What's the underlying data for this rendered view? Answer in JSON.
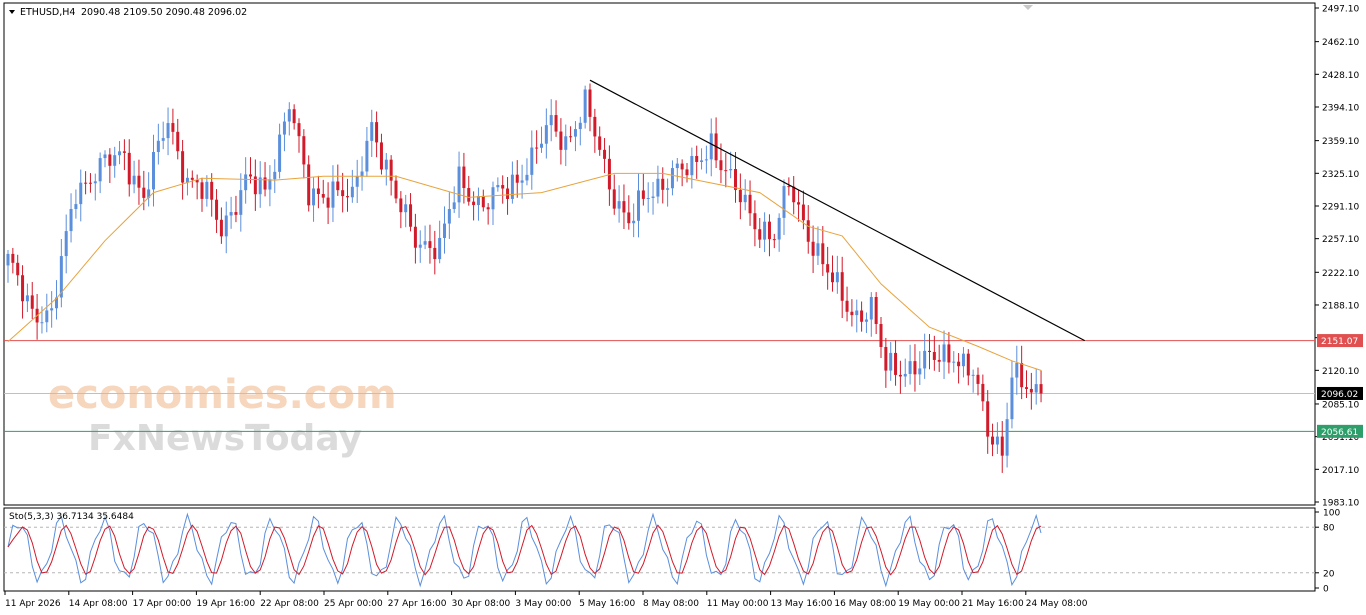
{
  "header": {
    "symbol": "ETHUSD,H4",
    "ohlc": "2090.48 2109.50 2090.48 2096.02"
  },
  "watermark": {
    "line1": "economies.com",
    "line2": "FxNewsToday"
  },
  "price_axis": {
    "ticks": [
      "2497.10",
      "2462.10",
      "2428.10",
      "2394.10",
      "2359.10",
      "2325.10",
      "2291.10",
      "2257.10",
      "2222.10",
      "2188.10",
      "2154.10",
      "2120.10",
      "2085.10",
      "2051.10",
      "2017.10",
      "1983.10"
    ]
  },
  "levels": {
    "resistance": {
      "value": 2151.07,
      "label": "2151.07",
      "color": "#e05050"
    },
    "current": {
      "value": 2096.02,
      "label": "2096.02",
      "color": "#000000"
    },
    "support": {
      "value": 2056.61,
      "label": "2056.61",
      "color": "#2e9e6a"
    }
  },
  "stochastic": {
    "label": "Sto(5,3,3) 36.7134 35.6484",
    "axis_ticks": [
      "100",
      "80",
      "20",
      "0"
    ]
  },
  "time_axis": {
    "labels": [
      "11 Apr 2026",
      "14 Apr 08:00",
      "17 Apr 00:00",
      "19 Apr 16:00",
      "22 Apr 08:00",
      "25 Apr 00:00",
      "27 Apr 16:00",
      "30 Apr 08:00",
      "3 May 00:00",
      "5 May 16:00",
      "8 May 08:00",
      "11 May 00:00",
      "13 May 16:00",
      "16 May 08:00",
      "19 May 00:00",
      "21 May 16:00",
      "24 May 08:00"
    ]
  },
  "chart_data": {
    "type": "candlestick",
    "symbol": "ETHUSD",
    "timeframe": "H4",
    "ylim": [
      1983.1,
      2497.1
    ],
    "bull_color": "#5b8fdc",
    "bear_color": "#d11a2a",
    "ma_color": "#e8a33c",
    "anchors": [
      {
        "i": 0,
        "p": 2230
      },
      {
        "i": 5,
        "p": 2185
      },
      {
        "i": 9,
        "p": 2175
      },
      {
        "i": 14,
        "p": 2310
      },
      {
        "i": 19,
        "p": 2330
      },
      {
        "i": 24,
        "p": 2345
      },
      {
        "i": 28,
        "p": 2300
      },
      {
        "i": 33,
        "p": 2380
      },
      {
        "i": 37,
        "p": 2320
      },
      {
        "i": 41,
        "p": 2300
      },
      {
        "i": 44,
        "p": 2270
      },
      {
        "i": 49,
        "p": 2315
      },
      {
        "i": 53,
        "p": 2305
      },
      {
        "i": 58,
        "p": 2400
      },
      {
        "i": 62,
        "p": 2300
      },
      {
        "i": 67,
        "p": 2310
      },
      {
        "i": 71,
        "p": 2295
      },
      {
        "i": 75,
        "p": 2380
      },
      {
        "i": 80,
        "p": 2295
      },
      {
        "i": 84,
        "p": 2260
      },
      {
        "i": 89,
        "p": 2245
      },
      {
        "i": 93,
        "p": 2320
      },
      {
        "i": 98,
        "p": 2290
      },
      {
        "i": 103,
        "p": 2310
      },
      {
        "i": 108,
        "p": 2340
      },
      {
        "i": 112,
        "p": 2375
      },
      {
        "i": 115,
        "p": 2360
      },
      {
        "i": 119,
        "p": 2395
      },
      {
        "i": 124,
        "p": 2315
      },
      {
        "i": 128,
        "p": 2275
      },
      {
        "i": 132,
        "p": 2300
      },
      {
        "i": 137,
        "p": 2330
      },
      {
        "i": 141,
        "p": 2325
      },
      {
        "i": 145,
        "p": 2360
      },
      {
        "i": 150,
        "p": 2305
      },
      {
        "i": 154,
        "p": 2275
      },
      {
        "i": 158,
        "p": 2260
      },
      {
        "i": 161,
        "p": 2310
      },
      {
        "i": 165,
        "p": 2265
      },
      {
        "i": 170,
        "p": 2210
      },
      {
        "i": 174,
        "p": 2180
      },
      {
        "i": 178,
        "p": 2185
      },
      {
        "i": 181,
        "p": 2120
      },
      {
        "i": 186,
        "p": 2125
      },
      {
        "i": 191,
        "p": 2130
      },
      {
        "i": 195,
        "p": 2140
      },
      {
        "i": 199,
        "p": 2115
      },
      {
        "i": 202,
        "p": 2055
      },
      {
        "i": 205,
        "p": 2040
      },
      {
        "i": 207,
        "p": 2120
      },
      {
        "i": 211,
        "p": 2090
      },
      {
        "i": 213,
        "p": 2096
      }
    ],
    "moving_average": [
      {
        "i": 0,
        "p": 2150
      },
      {
        "i": 10,
        "p": 2195
      },
      {
        "i": 20,
        "p": 2255
      },
      {
        "i": 30,
        "p": 2305
      },
      {
        "i": 40,
        "p": 2320
      },
      {
        "i": 55,
        "p": 2318
      },
      {
        "i": 65,
        "p": 2322
      },
      {
        "i": 80,
        "p": 2322
      },
      {
        "i": 95,
        "p": 2300
      },
      {
        "i": 110,
        "p": 2305
      },
      {
        "i": 125,
        "p": 2325
      },
      {
        "i": 135,
        "p": 2325
      },
      {
        "i": 145,
        "p": 2315
      },
      {
        "i": 155,
        "p": 2305
      },
      {
        "i": 165,
        "p": 2270
      },
      {
        "i": 172,
        "p": 2260
      },
      {
        "i": 180,
        "p": 2210
      },
      {
        "i": 190,
        "p": 2165
      },
      {
        "i": 200,
        "p": 2145
      },
      {
        "i": 207,
        "p": 2130
      },
      {
        "i": 213,
        "p": 2120
      }
    ],
    "trendline": {
      "from": {
        "i": 120,
        "p": 2422
      },
      "to": {
        "i": 222,
        "p": 2151
      }
    }
  }
}
